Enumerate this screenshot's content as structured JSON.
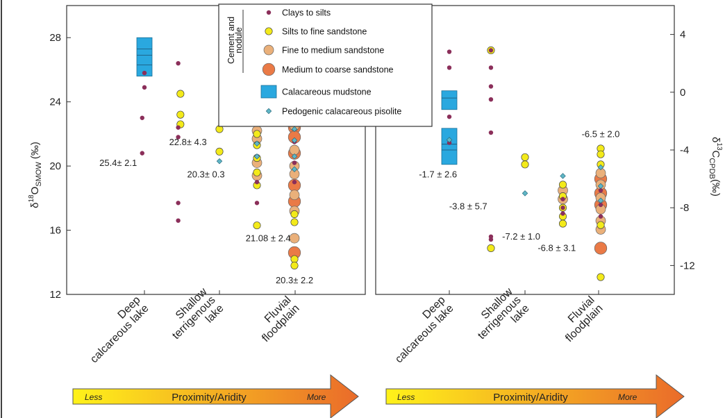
{
  "colors": {
    "clays": "#8b2f5a",
    "silts": "#f3ea1a",
    "fine": "#eab07a",
    "medium": "#ea7a46",
    "mudstone": "#2aa8df",
    "pisolite": "#5fb6c6",
    "arrow_start": "#fff21a",
    "arrow_end": "#ea6b2a"
  },
  "legend": {
    "group_label_line1": "Cement and",
    "group_label_line2": "nodule",
    "items": [
      {
        "label": "Clays to silts",
        "kind": "clays"
      },
      {
        "label": "Silts to fine sandstone",
        "kind": "silts"
      },
      {
        "label": "Fine to medium sandstone",
        "kind": "fine"
      },
      {
        "label": "Medium to coarse sandstone",
        "kind": "medium"
      },
      {
        "label": "Calacareous mudstone",
        "kind": "mudstone"
      },
      {
        "label": "Pedogenic calacareous pisolite",
        "kind": "pisolite"
      }
    ]
  },
  "arrows": [
    {
      "left": "Less",
      "center": "Proximity/Aridity",
      "right": "More"
    },
    {
      "left": "Less",
      "center": "Proximity/Aridity",
      "right": "More"
    }
  ],
  "chart_data": [
    {
      "type": "scatter",
      "ylabel_main": "δ",
      "ylabel_sup": "18",
      "ylabel_base": "O",
      "ylabel_sub": "SMOW",
      "ylabel_unit": " (‰)",
      "ylim": [
        12,
        30
      ],
      "yticks": [
        "12",
        "16",
        "20",
        "24",
        "28"
      ],
      "categories": [
        "Deep calcareous lake",
        "Shallow terrigenous lake",
        "Fluvial floodplain"
      ],
      "category_lines": [
        [
          "Deep",
          "calcareous lake"
        ],
        [
          "Shallow",
          "terrigenous",
          "lake"
        ],
        [
          "Fluvial",
          "floodplain"
        ]
      ],
      "box": {
        "cat": 0.0,
        "low": 25.6,
        "high": 28.0,
        "lines": [
          26.3,
          26.9,
          27.3
        ]
      },
      "annotations": [
        {
          "text": "25.4±  2.1",
          "cat": -0.35,
          "y": 20.0
        },
        {
          "text": "22.8±  4.3",
          "cat": 0.58,
          "y": 21.3
        },
        {
          "text": "20.3±  0.3",
          "cat": 0.82,
          "y": 19.3
        },
        {
          "text": "21.08 ± 2.4",
          "cat": 1.65,
          "y": 15.3
        },
        {
          "text": "20.3± 2.2",
          "cat": 2.0,
          "y": 12.7
        }
      ],
      "series": [
        {
          "kind": "clays",
          "points": [
            [
              0.0,
              25.8
            ],
            [
              0.0,
              24.9
            ],
            [
              -0.03,
              23.0
            ],
            [
              -0.03,
              20.8
            ],
            [
              0.45,
              26.4
            ],
            [
              0.45,
              22.4
            ],
            [
              0.45,
              21.8
            ],
            [
              0.45,
              17.7
            ],
            [
              0.45,
              16.6
            ],
            [
              1.5,
              20.6
            ],
            [
              1.5,
              19.0
            ],
            [
              1.5,
              17.7
            ],
            [
              2.0,
              21.5
            ],
            [
              2.0,
              20.2
            ],
            [
              2.0,
              19.0
            ]
          ]
        },
        {
          "kind": "silts",
          "points": [
            [
              0.48,
              24.5
            ],
            [
              0.48,
              23.2
            ],
            [
              0.48,
              22.6
            ],
            [
              1.0,
              22.3
            ],
            [
              1.0,
              20.9
            ],
            [
              1.5,
              22.0
            ],
            [
              1.5,
              21.3
            ],
            [
              1.5,
              20.5
            ],
            [
              1.5,
              19.6
            ],
            [
              1.5,
              18.8
            ],
            [
              1.5,
              16.3
            ],
            [
              2.0,
              17.0
            ],
            [
              2.0,
              16.5
            ],
            [
              2.0,
              14.2
            ],
            [
              2.0,
              13.8
            ]
          ]
        },
        {
          "kind": "fine",
          "points": [
            [
              1.5,
              22.2
            ],
            [
              1.5,
              21.7
            ],
            [
              1.5,
              20.2
            ],
            [
              1.5,
              19.4
            ],
            [
              2.0,
              22.5
            ],
            [
              2.0,
              21.0
            ],
            [
              2.0,
              20.0
            ],
            [
              2.0,
              19.5
            ],
            [
              2.0,
              18.2
            ],
            [
              2.0,
              17.2
            ],
            [
              2.0,
              15.5
            ]
          ]
        },
        {
          "kind": "medium",
          "points": [
            [
              2.0,
              22.4
            ],
            [
              2.0,
              21.8
            ],
            [
              2.0,
              20.8
            ],
            [
              2.0,
              18.8
            ],
            [
              2.0,
              17.8
            ],
            [
              2.0,
              14.6
            ]
          ]
        },
        {
          "kind": "pisolite",
          "points": [
            [
              1.0,
              20.3
            ],
            [
              1.5,
              21.4
            ],
            [
              1.5,
              20.6
            ],
            [
              2.0,
              22.3
            ],
            [
              2.0,
              21.6
            ],
            [
              2.0,
              20.6
            ],
            [
              2.0,
              19.8
            ]
          ]
        }
      ]
    },
    {
      "type": "scatter",
      "ylabel_main": "δ",
      "ylabel_sup": "13",
      "ylabel_base": "C",
      "ylabel_sub": "CPDB",
      "ylabel_unit": "(‰)",
      "ylim": [
        -14,
        6
      ],
      "yticks": [
        "-12",
        "-8",
        "-4",
        "0",
        "4"
      ],
      "categories": [
        "Deep calcareous lake",
        "Shallow terrigenous lake",
        "Fluvial floodplain"
      ],
      "category_lines": [
        [
          "Deep",
          "calcareous lake"
        ],
        [
          "Shallow",
          "terrigenous",
          "lake"
        ],
        [
          "Fluvial",
          "floodplain"
        ]
      ],
      "boxes": [
        {
          "cat": 0.0,
          "low": -1.2,
          "high": 0.1,
          "lines": [
            -0.4
          ]
        },
        {
          "cat": 0.0,
          "low": -5.0,
          "high": -2.5,
          "lines": [
            -3.6,
            -4.0
          ]
        }
      ],
      "annotations": [
        {
          "text": "-1.7 ±  2.6",
          "cat": -0.15,
          "y": -5.9
        },
        {
          "text": "-3.8 ±  5.7",
          "cat": 0.25,
          "y": -8.1
        },
        {
          "text": "-7.2 ±  1.0",
          "cat": 0.95,
          "y": -10.2
        },
        {
          "text": "-6.8 ±  3.1",
          "cat": 1.42,
          "y": -11.0
        },
        {
          "text": "-6.5 ±  2.0",
          "cat": 2.0,
          "y": -3.1
        }
      ],
      "series": [
        {
          "kind": "clays",
          "points": [
            [
              0.0,
              2.8
            ],
            [
              0.0,
              1.7
            ],
            [
              0.0,
              -1.7
            ],
            [
              0.0,
              -3.5
            ],
            [
              0.55,
              2.9
            ],
            [
              0.55,
              1.7
            ],
            [
              0.55,
              0.4
            ],
            [
              0.55,
              -0.5
            ],
            [
              0.55,
              -2.8
            ],
            [
              0.55,
              -10.0
            ],
            [
              0.55,
              -10.2
            ],
            [
              1.5,
              -7.4
            ],
            [
              1.5,
              -8.0
            ],
            [
              1.5,
              -8.4
            ],
            [
              2.0,
              -6.8
            ],
            [
              2.0,
              -7.8
            ],
            [
              2.0,
              -8.6
            ]
          ]
        },
        {
          "kind": "silts",
          "points": [
            [
              0.55,
              2.9
            ],
            [
              0.55,
              -10.8
            ],
            [
              1.0,
              -4.5
            ],
            [
              1.0,
              -5.0
            ],
            [
              1.5,
              -6.4
            ],
            [
              1.5,
              -7.2
            ],
            [
              1.5,
              -8.0
            ],
            [
              1.5,
              -8.6
            ],
            [
              1.5,
              -9.1
            ],
            [
              2.0,
              -3.9
            ],
            [
              2.0,
              -4.3
            ],
            [
              2.0,
              -5.0
            ],
            [
              2.0,
              -9.2
            ],
            [
              2.0,
              -12.8
            ]
          ]
        },
        {
          "kind": "fine",
          "points": [
            [
              1.5,
              -6.8
            ],
            [
              1.5,
              -7.4
            ],
            [
              2.0,
              -5.6
            ],
            [
              2.0,
              -6.4
            ],
            [
              2.0,
              -7.3
            ],
            [
              2.0,
              -8.1
            ],
            [
              2.0,
              -8.9
            ],
            [
              2.0,
              -9.5
            ]
          ]
        },
        {
          "kind": "medium",
          "points": [
            [
              2.0,
              -6.0
            ],
            [
              2.0,
              -7.0
            ],
            [
              2.0,
              -7.8
            ],
            [
              2.0,
              -10.8
            ]
          ]
        },
        {
          "kind": "pisolite",
          "points": [
            [
              0.0,
              -3.3
            ],
            [
              1.0,
              -7.0
            ],
            [
              1.5,
              -5.8
            ],
            [
              2.0,
              -5.2
            ],
            [
              2.0,
              -6.5
            ],
            [
              2.0,
              -7.5
            ]
          ]
        }
      ]
    }
  ]
}
